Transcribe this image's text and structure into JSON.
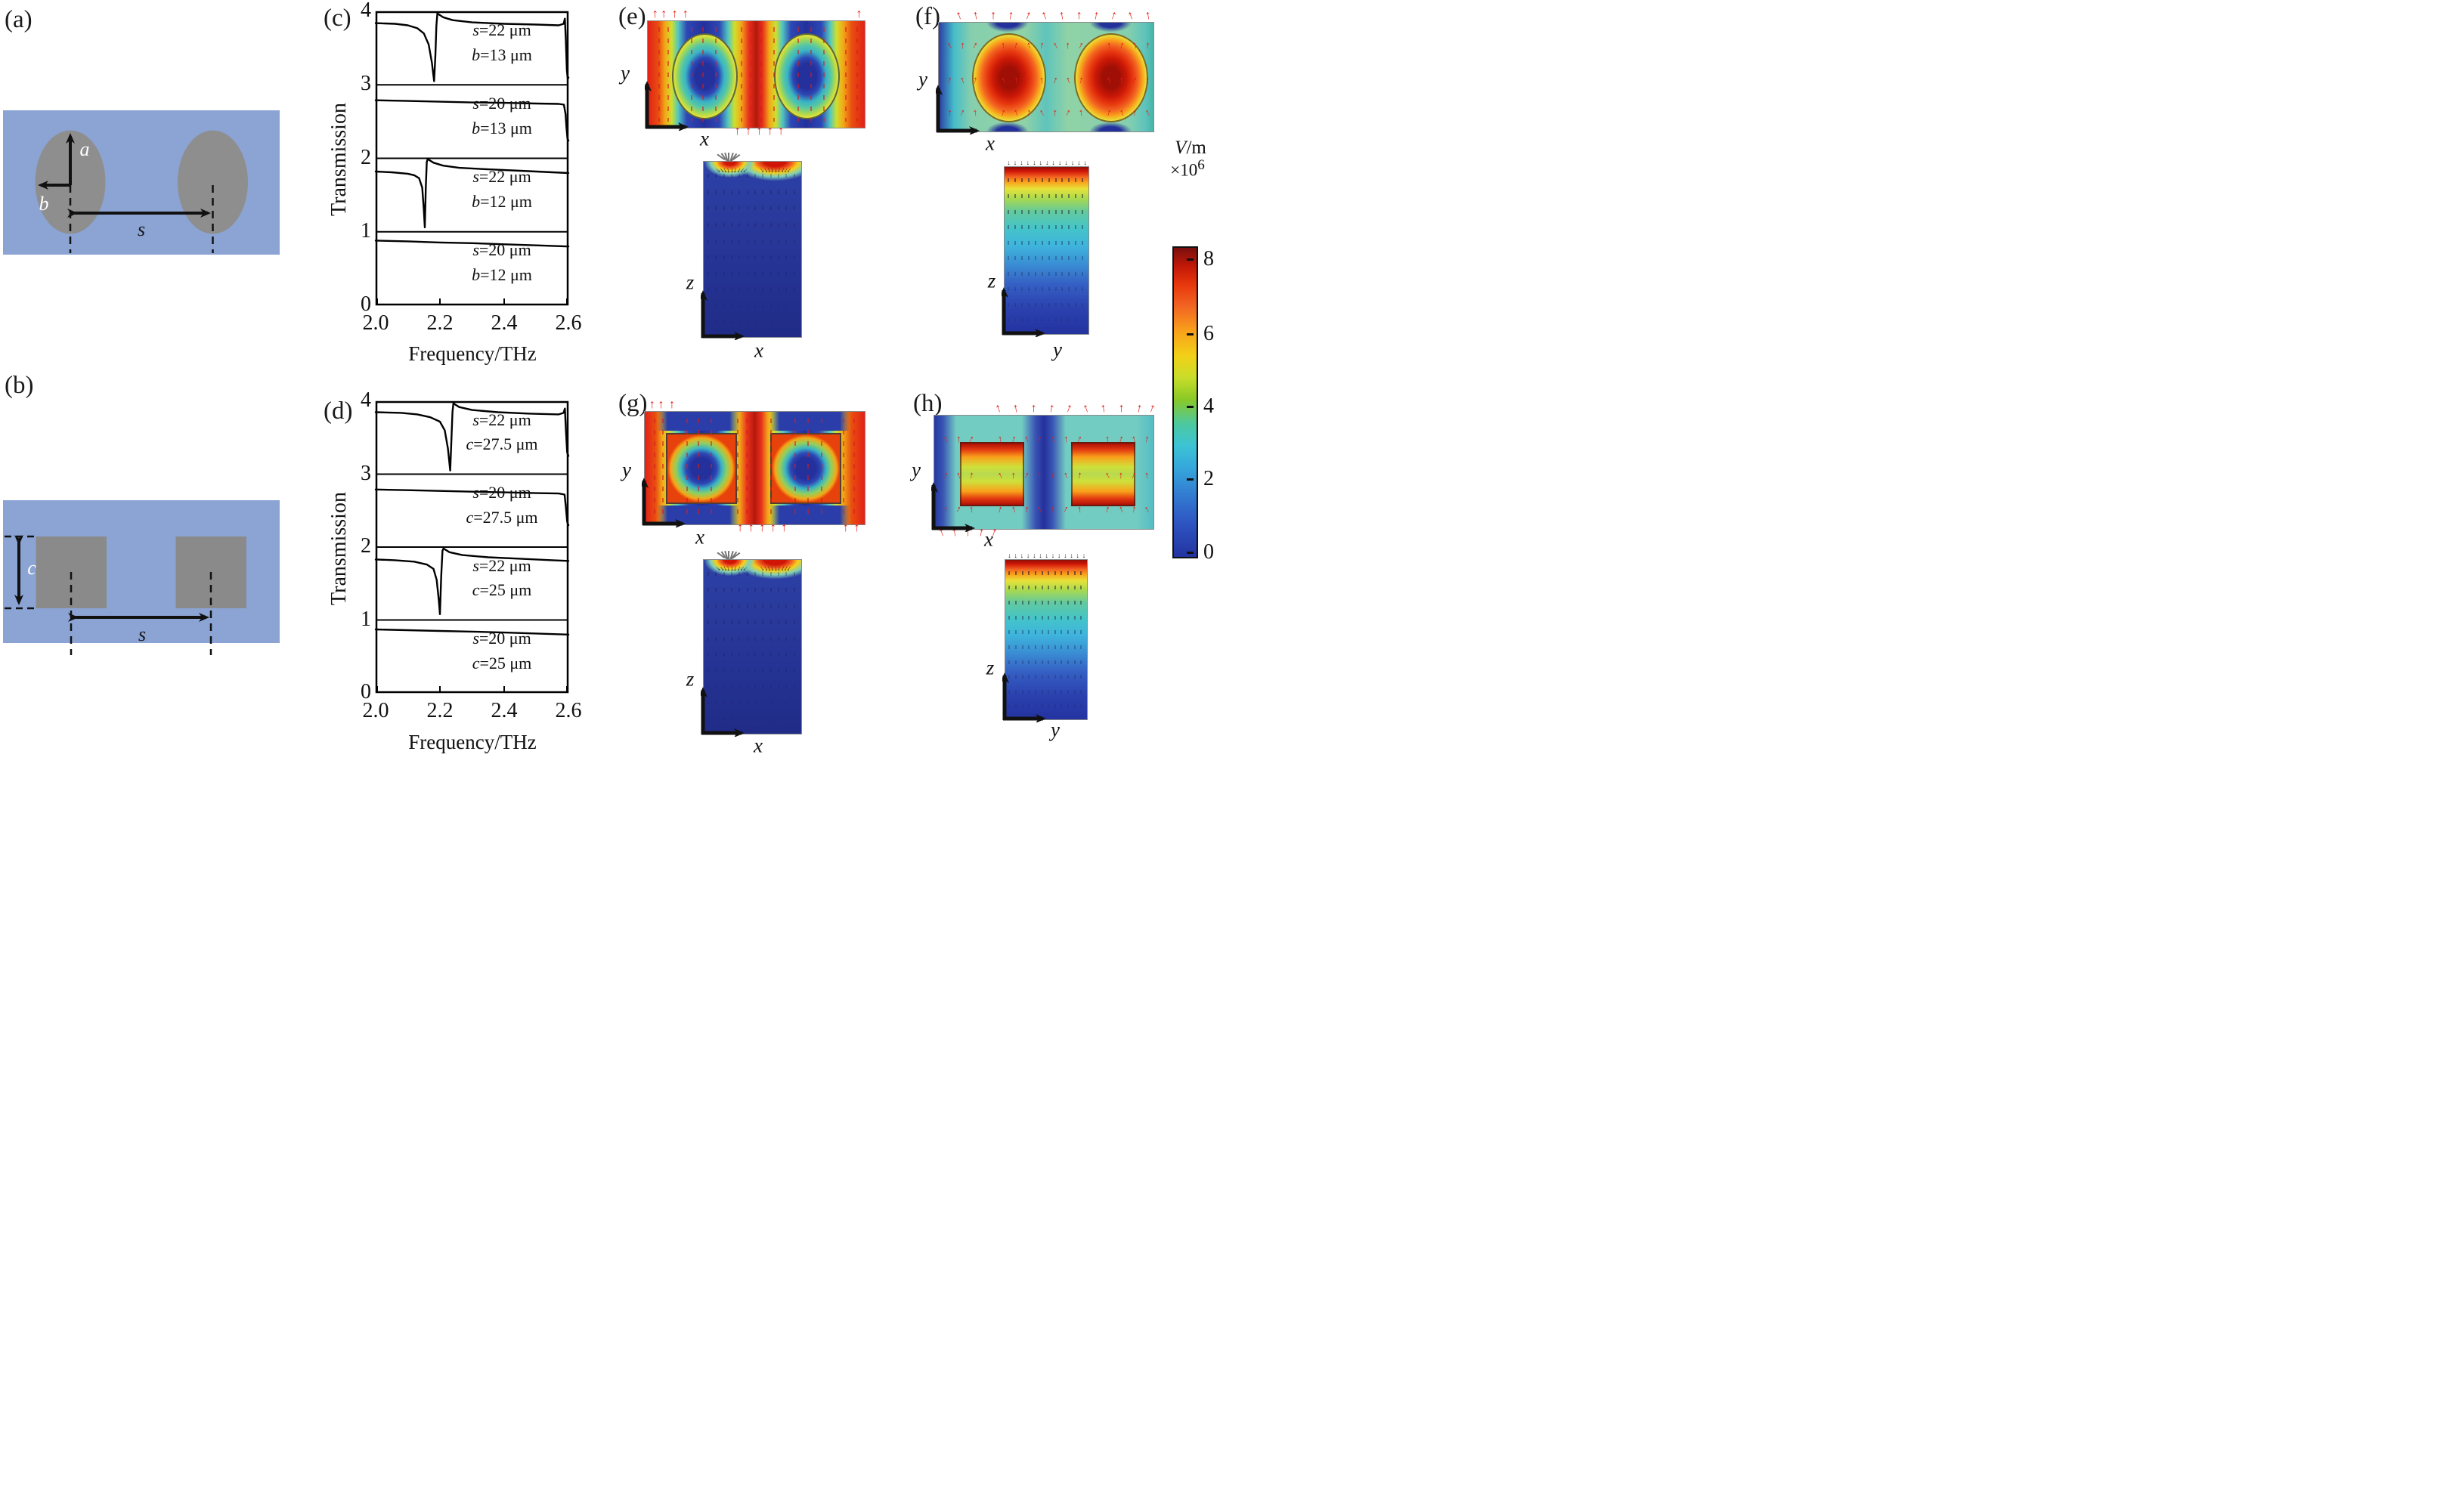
{
  "panels": {
    "a": {
      "label": "(a)",
      "marks": {
        "a": "a",
        "b": "b",
        "s": "s"
      }
    },
    "b": {
      "label": "(b)",
      "marks": {
        "c": "c",
        "s": "s"
      }
    },
    "c": {
      "label": "(c)"
    },
    "d": {
      "label": "(d)"
    },
    "e": {
      "label": "(e)",
      "top_axes": {
        "v": "y",
        "h": "x"
      },
      "bottom_axes": {
        "v": "z",
        "h": "x"
      }
    },
    "f": {
      "label": "(f)",
      "top_axes": {
        "v": "y",
        "h": "x"
      },
      "bottom_axes": {
        "v": "z",
        "h": "y"
      }
    },
    "g": {
      "label": "(g)",
      "top_axes": {
        "v": "y",
        "h": "x"
      },
      "bottom_axes": {
        "v": "z",
        "h": "x"
      }
    },
    "h": {
      "label": "(h)",
      "top_axes": {
        "v": "y",
        "h": "x"
      },
      "bottom_axes": {
        "v": "z",
        "h": "y"
      }
    }
  },
  "colorbar": {
    "title_var": "V",
    "title_rest": "/m",
    "scale_base": "×10",
    "scale_exp": "6",
    "ticks": [
      "8",
      "6",
      "4",
      "2",
      "0"
    ],
    "top_color": "#7a0f0f",
    "bottom_color": "#2333a0"
  },
  "chart_data": [
    {
      "type": "line",
      "panel": "c",
      "title": "",
      "xlabel": "Frequency/THz",
      "ylabel": "Transmission",
      "xlim": [
        2.0,
        2.6
      ],
      "ylim": [
        0,
        4
      ],
      "xticks": [
        "2.0",
        "2.2",
        "2.4",
        "2.6"
      ],
      "yticks": [
        "4",
        "3",
        "2",
        "1",
        "0"
      ],
      "grid": false,
      "legend_position": "right-inside",
      "series": [
        {
          "name": "s=22 um, b=13 um",
          "label": [
            [
              "s",
              "=22 μm"
            ],
            [
              "b",
              "=13 μm"
            ]
          ],
          "band": [
            3,
            4
          ],
          "points": [
            [
              2.0,
              3.84
            ],
            [
              2.06,
              3.83
            ],
            [
              2.1,
              3.81
            ],
            [
              2.13,
              3.77
            ],
            [
              2.15,
              3.7
            ],
            [
              2.165,
              3.55
            ],
            [
              2.175,
              3.3
            ],
            [
              2.182,
              3.05
            ],
            [
              2.186,
              3.4
            ],
            [
              2.189,
              3.8
            ],
            [
              2.192,
              3.97
            ],
            [
              2.21,
              3.92
            ],
            [
              2.24,
              3.88
            ],
            [
              2.3,
              3.85
            ],
            [
              2.4,
              3.83
            ],
            [
              2.5,
              3.82
            ],
            [
              2.57,
              3.81
            ],
            [
              2.585,
              3.83
            ],
            [
              2.589,
              3.9
            ],
            [
              2.592,
              3.6
            ],
            [
              2.595,
              3.2
            ],
            [
              2.598,
              3.08
            ],
            [
              2.6,
              3.1
            ]
          ]
        },
        {
          "name": "s=20 um, b=13 um",
          "label": [
            [
              "s",
              "=20 μm"
            ],
            [
              "b",
              "=13 μm"
            ]
          ],
          "band": [
            2,
            3
          ],
          "points": [
            [
              2.0,
              2.79
            ],
            [
              2.1,
              2.78
            ],
            [
              2.2,
              2.77
            ],
            [
              2.3,
              2.76
            ],
            [
              2.4,
              2.755
            ],
            [
              2.5,
              2.745
            ],
            [
              2.57,
              2.74
            ],
            [
              2.586,
              2.73
            ],
            [
              2.591,
              2.6
            ],
            [
              2.594,
              2.42
            ],
            [
              2.597,
              2.27
            ],
            [
              2.6,
              2.24
            ]
          ]
        },
        {
          "name": "s=22 um, b=12 um",
          "label": [
            [
              "s",
              "=22 μm"
            ],
            [
              "b",
              "=12 μm"
            ]
          ],
          "band": [
            1,
            2
          ],
          "points": [
            [
              2.0,
              1.82
            ],
            [
              2.05,
              1.81
            ],
            [
              2.1,
              1.79
            ],
            [
              2.12,
              1.77
            ],
            [
              2.135,
              1.73
            ],
            [
              2.145,
              1.6
            ],
            [
              2.15,
              1.3
            ],
            [
              2.153,
              1.06
            ],
            [
              2.156,
              1.6
            ],
            [
              2.159,
              1.95
            ],
            [
              2.162,
              1.99
            ],
            [
              2.18,
              1.94
            ],
            [
              2.21,
              1.9
            ],
            [
              2.26,
              1.87
            ],
            [
              2.35,
              1.85
            ],
            [
              2.45,
              1.83
            ],
            [
              2.55,
              1.81
            ],
            [
              2.6,
              1.8
            ]
          ]
        },
        {
          "name": "s=20 um, b=12 um",
          "label": [
            [
              "s",
              "=20 μm"
            ],
            [
              "b",
              "=12 μm"
            ]
          ],
          "band": [
            0,
            1
          ],
          "points": [
            [
              2.0,
              0.88
            ],
            [
              2.1,
              0.87
            ],
            [
              2.2,
              0.855
            ],
            [
              2.3,
              0.845
            ],
            [
              2.4,
              0.83
            ],
            [
              2.5,
              0.815
            ],
            [
              2.6,
              0.8
            ]
          ]
        }
      ]
    },
    {
      "type": "line",
      "panel": "d",
      "title": "",
      "xlabel": "Frequency/THz",
      "ylabel": "Transmission",
      "xlim": [
        2.0,
        2.6
      ],
      "ylim": [
        0,
        4
      ],
      "xticks": [
        "2.0",
        "2.2",
        "2.4",
        "2.6"
      ],
      "yticks": [
        "4",
        "3",
        "2",
        "1",
        "0"
      ],
      "grid": false,
      "legend_position": "right-inside",
      "series": [
        {
          "name": "s=22 um, c=27.5 um",
          "label": [
            [
              "s",
              "=22 μm"
            ],
            [
              "c",
              "=27.5 μm"
            ]
          ],
          "band": [
            3,
            4
          ],
          "points": [
            [
              2.0,
              3.85
            ],
            [
              2.08,
              3.84
            ],
            [
              2.13,
              3.82
            ],
            [
              2.17,
              3.78
            ],
            [
              2.2,
              3.72
            ],
            [
              2.215,
              3.6
            ],
            [
              2.225,
              3.35
            ],
            [
              2.232,
              3.05
            ],
            [
              2.236,
              3.5
            ],
            [
              2.239,
              3.85
            ],
            [
              2.242,
              3.97
            ],
            [
              2.26,
              3.92
            ],
            [
              2.3,
              3.88
            ],
            [
              2.38,
              3.85
            ],
            [
              2.48,
              3.83
            ],
            [
              2.57,
              3.82
            ],
            [
              2.585,
              3.84
            ],
            [
              2.589,
              3.9
            ],
            [
              2.592,
              3.62
            ],
            [
              2.596,
              3.3
            ],
            [
              2.6,
              3.25
            ]
          ]
        },
        {
          "name": "s=20 um, c=27.5 um",
          "label": [
            [
              "s",
              "=20 μm"
            ],
            [
              "c",
              "=27.5 μm"
            ]
          ],
          "band": [
            2,
            3
          ],
          "points": [
            [
              2.0,
              2.79
            ],
            [
              2.1,
              2.78
            ],
            [
              2.2,
              2.77
            ],
            [
              2.3,
              2.76
            ],
            [
              2.4,
              2.75
            ],
            [
              2.5,
              2.74
            ],
            [
              2.57,
              2.735
            ],
            [
              2.588,
              2.72
            ],
            [
              2.592,
              2.55
            ],
            [
              2.596,
              2.35
            ],
            [
              2.6,
              2.3
            ]
          ]
        },
        {
          "name": "s=22 um, c=25 um",
          "label": [
            [
              "s",
              "=22 μm"
            ],
            [
              "c",
              "=25 μm"
            ]
          ],
          "band": [
            1,
            2
          ],
          "points": [
            [
              2.0,
              1.83
            ],
            [
              2.06,
              1.82
            ],
            [
              2.12,
              1.8
            ],
            [
              2.16,
              1.76
            ],
            [
              2.18,
              1.7
            ],
            [
              2.19,
              1.55
            ],
            [
              2.197,
              1.25
            ],
            [
              2.2,
              1.08
            ],
            [
              2.204,
              1.6
            ],
            [
              2.208,
              1.95
            ],
            [
              2.211,
              1.98
            ],
            [
              2.23,
              1.93
            ],
            [
              2.27,
              1.89
            ],
            [
              2.35,
              1.86
            ],
            [
              2.45,
              1.84
            ],
            [
              2.55,
              1.82
            ],
            [
              2.6,
              1.81
            ]
          ]
        },
        {
          "name": "s=20 um, c=25 um",
          "label": [
            [
              "s",
              "=20 μm"
            ],
            [
              "c",
              "=25 μm"
            ]
          ],
          "band": [
            0,
            1
          ],
          "points": [
            [
              2.0,
              0.87
            ],
            [
              2.1,
              0.86
            ],
            [
              2.2,
              0.85
            ],
            [
              2.3,
              0.84
            ],
            [
              2.4,
              0.828
            ],
            [
              2.5,
              0.815
            ],
            [
              2.6,
              0.8
            ]
          ]
        }
      ]
    }
  ]
}
